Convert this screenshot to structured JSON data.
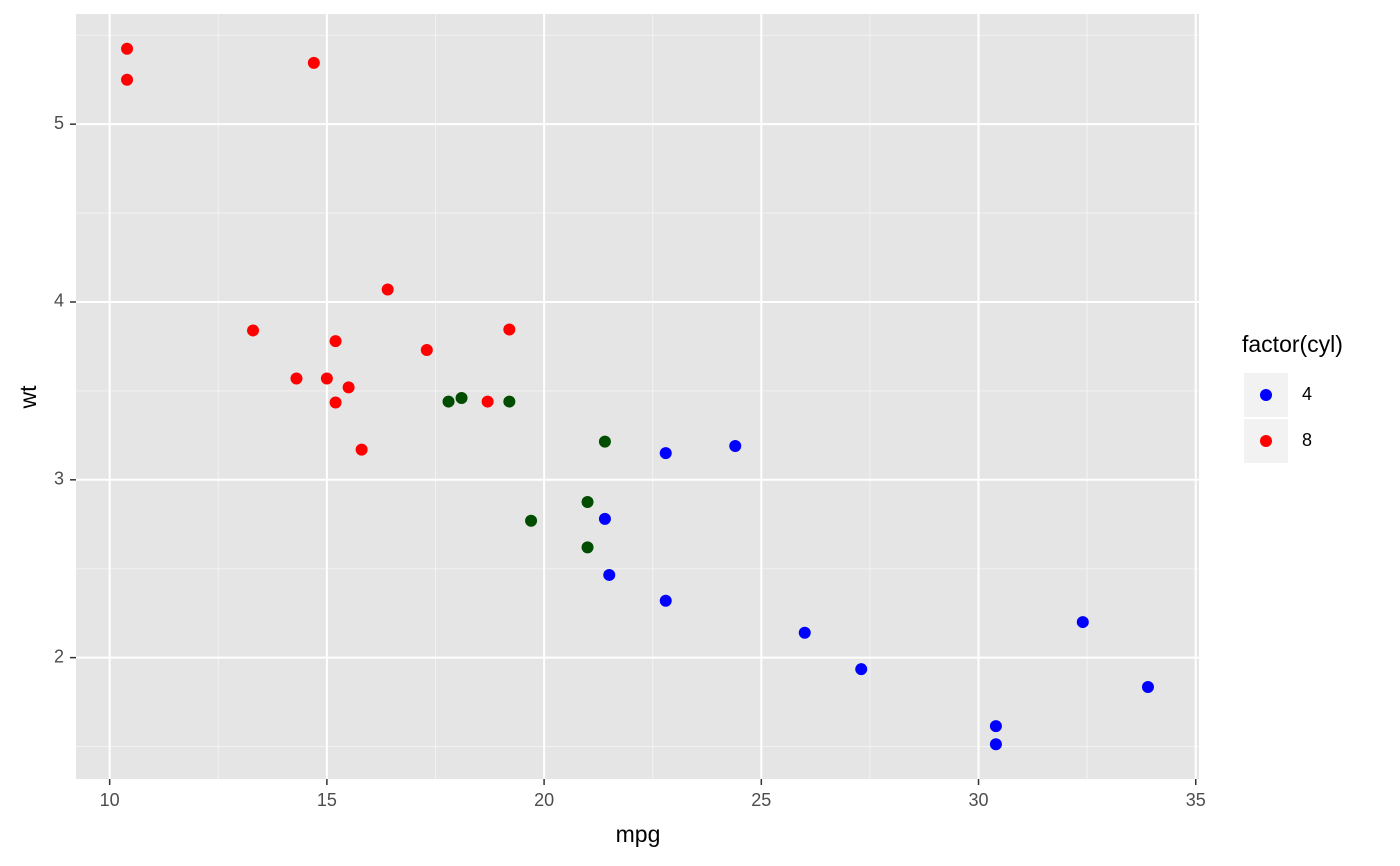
{
  "chart_data": {
    "type": "scatter",
    "x_label": "mpg",
    "y_label": "wt",
    "legend_title": "factor(cyl)",
    "series": [
      {
        "name": "4",
        "color": "#0000ff",
        "x": [
          22.8,
          24.4,
          22.8,
          32.4,
          30.4,
          33.9,
          21.5,
          27.3,
          26.0,
          30.4,
          21.4
        ],
        "values": [
          2.32,
          3.19,
          3.15,
          2.2,
          1.615,
          1.835,
          2.465,
          1.935,
          2.14,
          1.513,
          2.78
        ]
      },
      {
        "name": "8",
        "color": "#ff0000",
        "x": [
          18.7,
          14.3,
          16.4,
          17.3,
          15.2,
          10.4,
          10.4,
          14.7,
          15.5,
          15.2,
          13.3,
          19.2,
          15.0,
          15.8
        ],
        "values": [
          3.44,
          3.57,
          4.07,
          3.73,
          3.78,
          5.25,
          5.424,
          5.345,
          3.52,
          3.435,
          3.84,
          3.845,
          3.57,
          3.17
        ]
      },
      {
        "name": null,
        "color": "#004d00",
        "x": [
          21.0,
          21.0,
          21.4,
          18.1,
          19.2,
          17.8,
          19.7
        ],
        "values": [
          2.62,
          2.875,
          3.215,
          3.46,
          3.44,
          3.44,
          2.77
        ]
      }
    ],
    "xlim": [
      9.225,
      35.075
    ],
    "ylim": [
      1.31745,
      5.61955
    ],
    "xticks": [
      10,
      15,
      20,
      25,
      30,
      35
    ],
    "yticks": [
      2,
      3,
      4,
      5
    ],
    "xminorticks": [
      12.5,
      17.5,
      22.5,
      27.5,
      32.5
    ],
    "yminorticks": [
      1.5,
      2.5,
      3.5,
      4.5,
      5.5
    ],
    "grid": true,
    "legend": "right"
  }
}
